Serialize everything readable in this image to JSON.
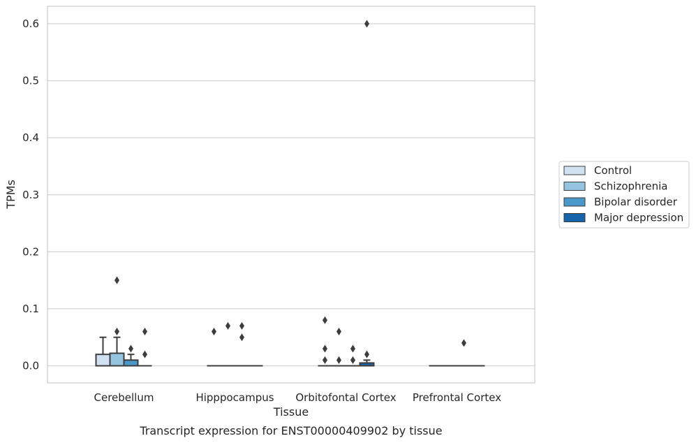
{
  "chart_data": {
    "type": "box",
    "title": "Transcript expression for ENST00000409902 by tissue",
    "xlabel": "Tissue",
    "ylabel": "TPMs",
    "ylim": [
      -0.03,
      0.63
    ],
    "yticks": [
      "0.0",
      "0.1",
      "0.2",
      "0.3",
      "0.4",
      "0.5",
      "0.6"
    ],
    "grid": true,
    "legend_position": "right",
    "categories": [
      "Cerebellum",
      "Hipppocampus",
      "Orbitofontal Cortex",
      "Prefrontal Cortex"
    ],
    "series": [
      {
        "name": "Control",
        "color": "#d0e1f2",
        "boxes": [
          {
            "q1": 0.0,
            "median": 0.0,
            "q3": 0.02,
            "whisker_low": 0.0,
            "whisker_high": 0.05,
            "outliers": []
          },
          {
            "q1": 0.0,
            "median": 0.0,
            "q3": 0.0,
            "whisker_low": 0.0,
            "whisker_high": 0.0,
            "outliers": [
              0.06
            ]
          },
          {
            "q1": 0.0,
            "median": 0.0,
            "q3": 0.0,
            "whisker_low": 0.0,
            "whisker_high": 0.0,
            "outliers": [
              0.03,
              0.01,
              0.08
            ]
          },
          {
            "q1": 0.0,
            "median": 0.0,
            "q3": 0.0,
            "whisker_low": 0.0,
            "whisker_high": 0.0,
            "outliers": []
          }
        ]
      },
      {
        "name": "Schizophrenia",
        "color": "#94c4df",
        "boxes": [
          {
            "q1": 0.0,
            "median": 0.0,
            "q3": 0.022,
            "whisker_low": 0.0,
            "whisker_high": 0.05,
            "outliers": [
              0.06,
              0.15
            ]
          },
          {
            "q1": 0.0,
            "median": 0.0,
            "q3": 0.0,
            "whisker_low": 0.0,
            "whisker_high": 0.0,
            "outliers": [
              0.07
            ]
          },
          {
            "q1": 0.0,
            "median": 0.0,
            "q3": 0.0,
            "whisker_low": 0.0,
            "whisker_high": 0.0,
            "outliers": [
              0.01,
              0.06
            ]
          },
          {
            "q1": 0.0,
            "median": 0.0,
            "q3": 0.0,
            "whisker_low": 0.0,
            "whisker_high": 0.0,
            "outliers": []
          }
        ]
      },
      {
        "name": "Bipolar disorder",
        "color": "#4a98c9",
        "boxes": [
          {
            "q1": 0.0,
            "median": 0.0,
            "q3": 0.01,
            "whisker_low": 0.0,
            "whisker_high": 0.02,
            "outliers": [
              0.03
            ]
          },
          {
            "q1": 0.0,
            "median": 0.0,
            "q3": 0.0,
            "whisker_low": 0.0,
            "whisker_high": 0.0,
            "outliers": [
              0.05,
              0.07
            ]
          },
          {
            "q1": 0.0,
            "median": 0.0,
            "q3": 0.0,
            "whisker_low": 0.0,
            "whisker_high": 0.0,
            "outliers": [
              0.01,
              0.03
            ]
          },
          {
            "q1": 0.0,
            "median": 0.0,
            "q3": 0.0,
            "whisker_low": 0.0,
            "whisker_high": 0.0,
            "outliers": [
              0.04
            ]
          }
        ]
      },
      {
        "name": "Major depression",
        "color": "#1764ab",
        "boxes": [
          {
            "q1": 0.0,
            "median": 0.0,
            "q3": 0.0,
            "whisker_low": 0.0,
            "whisker_high": 0.0,
            "outliers": [
              0.02,
              0.06
            ]
          },
          {
            "q1": 0.0,
            "median": 0.0,
            "q3": 0.0,
            "whisker_low": 0.0,
            "whisker_high": 0.0,
            "outliers": []
          },
          {
            "q1": 0.0,
            "median": 0.0,
            "q3": 0.005,
            "whisker_low": 0.0,
            "whisker_high": 0.01,
            "outliers": [
              0.02,
              0.6
            ]
          },
          {
            "q1": 0.0,
            "median": 0.0,
            "q3": 0.0,
            "whisker_low": 0.0,
            "whisker_high": 0.0,
            "outliers": []
          }
        ]
      }
    ]
  }
}
